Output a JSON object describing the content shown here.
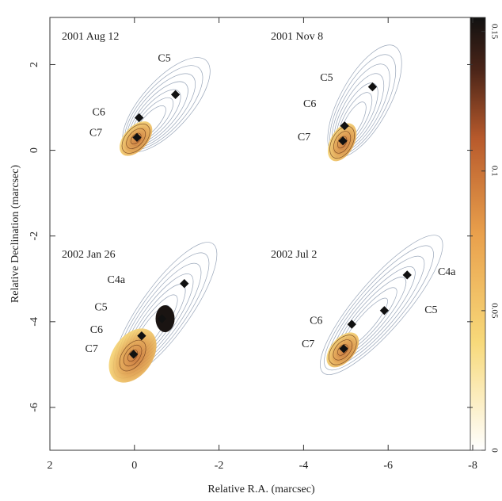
{
  "chart_data": {
    "type": "scatter",
    "xlabel": "Relative R.A. (marcsec)",
    "ylabel": "Relative Declination (marcsec)",
    "xlim": [
      2,
      -8
    ],
    "ylim": [
      -7,
      3.1
    ],
    "xticks": [
      2,
      0,
      -2,
      -4,
      -6,
      -8
    ],
    "yticks": [
      -6,
      -4,
      -2,
      0,
      2
    ],
    "colorbar": {
      "lim": [
        0,
        0.155
      ],
      "ticks": [
        0,
        0.05,
        0.1,
        0.15
      ]
    },
    "panels": [
      {
        "label": "2001 Aug 12",
        "components": [
          {
            "name": "C5",
            "x": -0.97,
            "y": 1.3
          },
          {
            "name": "C6",
            "x": -0.11,
            "y": 0.76
          },
          {
            "name": "C7",
            "x": -0.06,
            "y": 0.3
          }
        ]
      },
      {
        "label": "2001 Nov 8",
        "components": [
          {
            "name": "C5",
            "x": -5.63,
            "y": 1.48
          },
          {
            "name": "C6",
            "x": -4.97,
            "y": 0.57
          },
          {
            "name": "C7",
            "x": -4.93,
            "y": 0.22
          }
        ]
      },
      {
        "label": "2002 Jan 26",
        "components": [
          {
            "name": "C4a",
            "x": -1.18,
            "y": -3.11
          },
          {
            "name": "C5",
            "x": -0.65,
            "y": -3.93
          },
          {
            "name": "C6",
            "x": -0.17,
            "y": -4.33
          },
          {
            "name": "C7",
            "x": 0.02,
            "y": -4.76
          }
        ]
      },
      {
        "label": "2002 Jul 2",
        "components": [
          {
            "name": "C4a",
            "x": -6.45,
            "y": -2.91
          },
          {
            "name": "C5",
            "x": -5.91,
            "y": -3.74
          },
          {
            "name": "C6",
            "x": -5.14,
            "y": -4.06
          },
          {
            "name": "C7",
            "x": -4.95,
            "y": -4.63
          }
        ]
      }
    ]
  }
}
